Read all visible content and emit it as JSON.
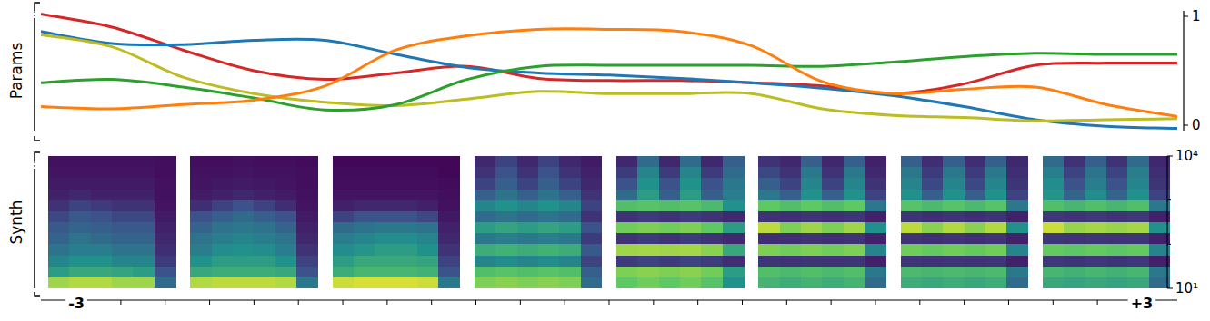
{
  "chart_data": [
    {
      "type": "line",
      "ylabel": "Params",
      "xlim": [
        -3.2,
        3.2
      ],
      "ylim": [
        -0.05,
        1.05
      ],
      "yticks": [
        0,
        1
      ],
      "grid": false,
      "x": [
        -3.2,
        -2.8,
        -2.4,
        -2.0,
        -1.6,
        -1.2,
        -0.8,
        -0.4,
        0.0,
        0.4,
        0.8,
        1.2,
        1.6,
        2.0,
        2.4,
        2.8,
        3.2
      ],
      "series": [
        {
          "color": "#d62728",
          "values": [
            1.02,
            0.9,
            0.69,
            0.5,
            0.42,
            0.48,
            0.54,
            0.43,
            0.41,
            0.41,
            0.39,
            0.36,
            0.29,
            0.38,
            0.55,
            0.57,
            0.57
          ]
        },
        {
          "color": "#1f77b4",
          "values": [
            0.86,
            0.75,
            0.74,
            0.78,
            0.78,
            0.65,
            0.53,
            0.48,
            0.46,
            0.43,
            0.39,
            0.34,
            0.27,
            0.17,
            0.05,
            -0.01,
            -0.03
          ]
        },
        {
          "color": "#bcbd22",
          "values": [
            0.83,
            0.72,
            0.44,
            0.29,
            0.21,
            0.18,
            0.24,
            0.31,
            0.29,
            0.29,
            0.29,
            0.15,
            0.09,
            0.07,
            0.04,
            0.05,
            0.06
          ]
        },
        {
          "color": "#2ca02c",
          "values": [
            0.39,
            0.42,
            0.35,
            0.25,
            0.14,
            0.19,
            0.42,
            0.54,
            0.55,
            0.55,
            0.55,
            0.54,
            0.58,
            0.63,
            0.66,
            0.65,
            0.65
          ]
        },
        {
          "color": "#ff7f0e",
          "values": [
            0.17,
            0.15,
            0.19,
            0.23,
            0.36,
            0.69,
            0.82,
            0.88,
            0.88,
            0.86,
            0.73,
            0.4,
            0.29,
            0.33,
            0.35,
            0.19,
            0.08
          ]
        }
      ]
    },
    {
      "type": "heatmap",
      "ylabel": "Synth",
      "log": "y",
      "xlim": [
        -3.2,
        3.2
      ],
      "xticks": [
        {
          "value": -3,
          "label": "-3"
        },
        {
          "value": 3,
          "label": "+3"
        }
      ],
      "x_minor_ticks": [
        -2.75,
        -2.5,
        -2.25,
        -2.0,
        -1.75,
        -1.5,
        -1.25,
        -1.0,
        -0.75,
        -0.5,
        -0.25,
        0.0,
        0.25,
        0.5,
        0.75,
        1.0,
        1.25,
        1.5,
        1.75,
        2.0,
        2.25,
        2.5,
        2.75
      ],
      "ylim": [
        10,
        10000
      ],
      "yticks": [
        {
          "value": 10000,
          "label": "10⁴"
        },
        {
          "value": 10,
          "label": "10¹"
        }
      ],
      "y_minor_ticks": [
        100,
        1000
      ],
      "color_range": [
        0,
        1
      ],
      "x": [
        -2.8,
        -2.0,
        -1.2,
        -0.4,
        0.4,
        1.2,
        2.0,
        2.8
      ],
      "panels": [
        {
          "cells": [
            [
              0.05,
              0.05,
              0.05,
              0.05,
              0.05,
              0.04
            ],
            [
              0.06,
              0.06,
              0.06,
              0.06,
              0.06,
              0.04
            ],
            [
              0.08,
              0.08,
              0.08,
              0.08,
              0.08,
              0.05
            ],
            [
              0.1,
              0.12,
              0.1,
              0.1,
              0.1,
              0.05
            ],
            [
              0.15,
              0.2,
              0.18,
              0.15,
              0.15,
              0.06
            ],
            [
              0.22,
              0.28,
              0.25,
              0.22,
              0.22,
              0.08
            ],
            [
              0.28,
              0.32,
              0.3,
              0.28,
              0.28,
              0.1
            ],
            [
              0.32,
              0.38,
              0.35,
              0.32,
              0.32,
              0.12
            ],
            [
              0.38,
              0.42,
              0.42,
              0.38,
              0.38,
              0.14
            ],
            [
              0.45,
              0.5,
              0.5,
              0.45,
              0.45,
              0.18
            ],
            [
              0.55,
              0.6,
              0.6,
              0.58,
              0.55,
              0.25
            ],
            [
              0.85,
              0.88,
              0.88,
              0.85,
              0.85,
              0.35
            ]
          ]
        },
        {
          "cells": [
            [
              0.04,
              0.04,
              0.05,
              0.04,
              0.04,
              0.03
            ],
            [
              0.05,
              0.05,
              0.06,
              0.05,
              0.05,
              0.04
            ],
            [
              0.06,
              0.07,
              0.08,
              0.07,
              0.06,
              0.04
            ],
            [
              0.08,
              0.1,
              0.12,
              0.1,
              0.08,
              0.05
            ],
            [
              0.14,
              0.2,
              0.25,
              0.2,
              0.14,
              0.06
            ],
            [
              0.25,
              0.3,
              0.35,
              0.3,
              0.25,
              0.08
            ],
            [
              0.32,
              0.38,
              0.4,
              0.38,
              0.32,
              0.1
            ],
            [
              0.38,
              0.42,
              0.45,
              0.42,
              0.38,
              0.12
            ],
            [
              0.42,
              0.48,
              0.5,
              0.48,
              0.42,
              0.15
            ],
            [
              0.5,
              0.55,
              0.55,
              0.55,
              0.5,
              0.2
            ],
            [
              0.6,
              0.62,
              0.62,
              0.62,
              0.6,
              0.25
            ],
            [
              0.88,
              0.9,
              0.9,
              0.9,
              0.88,
              0.4
            ]
          ]
        },
        {
          "cells": [
            [
              0.02,
              0.02,
              0.02,
              0.02,
              0.02,
              0.02
            ],
            [
              0.03,
              0.03,
              0.03,
              0.03,
              0.03,
              0.02
            ],
            [
              0.04,
              0.04,
              0.04,
              0.04,
              0.04,
              0.03
            ],
            [
              0.06,
              0.06,
              0.06,
              0.06,
              0.06,
              0.04
            ],
            [
              0.1,
              0.12,
              0.12,
              0.12,
              0.1,
              0.05
            ],
            [
              0.2,
              0.25,
              0.25,
              0.25,
              0.22,
              0.07
            ],
            [
              0.35,
              0.38,
              0.4,
              0.4,
              0.38,
              0.1
            ],
            [
              0.42,
              0.45,
              0.48,
              0.48,
              0.45,
              0.12
            ],
            [
              0.48,
              0.52,
              0.55,
              0.55,
              0.5,
              0.15
            ],
            [
              0.55,
              0.6,
              0.6,
              0.6,
              0.58,
              0.2
            ],
            [
              0.62,
              0.66,
              0.66,
              0.66,
              0.64,
              0.25
            ],
            [
              0.92,
              0.94,
              0.94,
              0.94,
              0.92,
              0.4
            ]
          ]
        },
        {
          "cells": [
            [
              0.12,
              0.2,
              0.12,
              0.2,
              0.12,
              0.08
            ],
            [
              0.15,
              0.25,
              0.15,
              0.25,
              0.15,
              0.1
            ],
            [
              0.2,
              0.3,
              0.2,
              0.3,
              0.2,
              0.12
            ],
            [
              0.3,
              0.38,
              0.3,
              0.38,
              0.3,
              0.15
            ],
            [
              0.45,
              0.5,
              0.45,
              0.5,
              0.45,
              0.2
            ],
            [
              0.35,
              0.38,
              0.35,
              0.38,
              0.35,
              0.15
            ],
            [
              0.55,
              0.58,
              0.55,
              0.58,
              0.55,
              0.25
            ],
            [
              0.4,
              0.42,
              0.4,
              0.42,
              0.4,
              0.18
            ],
            [
              0.62,
              0.64,
              0.62,
              0.64,
              0.62,
              0.28
            ],
            [
              0.45,
              0.48,
              0.45,
              0.48,
              0.45,
              0.2
            ],
            [
              0.7,
              0.72,
              0.7,
              0.72,
              0.7,
              0.3
            ],
            [
              0.8,
              0.82,
              0.8,
              0.82,
              0.8,
              0.35
            ]
          ]
        },
        {
          "cells": [
            [
              0.12,
              0.35,
              0.12,
              0.35,
              0.12,
              0.3
            ],
            [
              0.18,
              0.45,
              0.18,
              0.45,
              0.18,
              0.35
            ],
            [
              0.25,
              0.5,
              0.25,
              0.5,
              0.25,
              0.4
            ],
            [
              0.35,
              0.55,
              0.3,
              0.55,
              0.3,
              0.42
            ],
            [
              0.7,
              0.72,
              0.7,
              0.72,
              0.68,
              0.5
            ],
            [
              0.15,
              0.18,
              0.15,
              0.18,
              0.15,
              0.12
            ],
            [
              0.78,
              0.8,
              0.78,
              0.8,
              0.75,
              0.55
            ],
            [
              0.15,
              0.18,
              0.15,
              0.18,
              0.15,
              0.12
            ],
            [
              0.85,
              0.86,
              0.85,
              0.86,
              0.82,
              0.6
            ],
            [
              0.18,
              0.2,
              0.18,
              0.2,
              0.18,
              0.14
            ],
            [
              0.8,
              0.82,
              0.8,
              0.82,
              0.78,
              0.55
            ],
            [
              0.75,
              0.78,
              0.75,
              0.78,
              0.72,
              0.5
            ]
          ]
        },
        {
          "cells": [
            [
              0.15,
              0.12,
              0.3,
              0.12,
              0.3,
              0.1
            ],
            [
              0.22,
              0.15,
              0.4,
              0.15,
              0.4,
              0.12
            ],
            [
              0.3,
              0.2,
              0.45,
              0.2,
              0.45,
              0.15
            ],
            [
              0.4,
              0.3,
              0.5,
              0.3,
              0.5,
              0.2
            ],
            [
              0.75,
              0.7,
              0.75,
              0.7,
              0.75,
              0.4
            ],
            [
              0.15,
              0.14,
              0.16,
              0.14,
              0.16,
              0.1
            ],
            [
              0.9,
              0.8,
              0.85,
              0.8,
              0.85,
              0.5
            ],
            [
              0.14,
              0.14,
              0.15,
              0.14,
              0.15,
              0.1
            ],
            [
              0.8,
              0.78,
              0.8,
              0.78,
              0.8,
              0.45
            ],
            [
              0.16,
              0.15,
              0.16,
              0.15,
              0.16,
              0.1
            ],
            [
              0.7,
              0.68,
              0.7,
              0.68,
              0.7,
              0.4
            ],
            [
              0.65,
              0.62,
              0.65,
              0.62,
              0.65,
              0.35
            ]
          ]
        },
        {
          "cells": [
            [
              0.3,
              0.14,
              0.3,
              0.14,
              0.3,
              0.12
            ],
            [
              0.4,
              0.18,
              0.4,
              0.18,
              0.4,
              0.14
            ],
            [
              0.45,
              0.22,
              0.45,
              0.22,
              0.45,
              0.16
            ],
            [
              0.5,
              0.3,
              0.5,
              0.3,
              0.5,
              0.2
            ],
            [
              0.72,
              0.68,
              0.72,
              0.68,
              0.72,
              0.4
            ],
            [
              0.16,
              0.14,
              0.16,
              0.14,
              0.16,
              0.1
            ],
            [
              0.9,
              0.82,
              0.88,
              0.82,
              0.88,
              0.5
            ],
            [
              0.15,
              0.14,
              0.15,
              0.14,
              0.15,
              0.1
            ],
            [
              0.78,
              0.76,
              0.78,
              0.76,
              0.78,
              0.45
            ],
            [
              0.16,
              0.15,
              0.16,
              0.15,
              0.16,
              0.1
            ],
            [
              0.68,
              0.66,
              0.68,
              0.66,
              0.68,
              0.4
            ],
            [
              0.62,
              0.6,
              0.62,
              0.6,
              0.62,
              0.35
            ]
          ]
        },
        {
          "cells": [
            [
              0.35,
              0.15,
              0.3,
              0.15,
              0.35,
              0.12
            ],
            [
              0.42,
              0.2,
              0.38,
              0.2,
              0.42,
              0.14
            ],
            [
              0.48,
              0.25,
              0.42,
              0.25,
              0.45,
              0.16
            ],
            [
              0.52,
              0.32,
              0.48,
              0.32,
              0.5,
              0.2
            ],
            [
              0.7,
              0.66,
              0.7,
              0.66,
              0.7,
              0.4
            ],
            [
              0.17,
              0.15,
              0.17,
              0.15,
              0.17,
              0.1
            ],
            [
              0.92,
              0.84,
              0.86,
              0.84,
              0.86,
              0.5
            ],
            [
              0.16,
              0.15,
              0.16,
              0.15,
              0.16,
              0.1
            ],
            [
              0.76,
              0.74,
              0.76,
              0.74,
              0.76,
              0.45
            ],
            [
              0.17,
              0.16,
              0.17,
              0.16,
              0.17,
              0.1
            ],
            [
              0.66,
              0.64,
              0.66,
              0.64,
              0.66,
              0.4
            ],
            [
              0.6,
              0.58,
              0.6,
              0.58,
              0.6,
              0.35
            ]
          ]
        }
      ]
    }
  ]
}
